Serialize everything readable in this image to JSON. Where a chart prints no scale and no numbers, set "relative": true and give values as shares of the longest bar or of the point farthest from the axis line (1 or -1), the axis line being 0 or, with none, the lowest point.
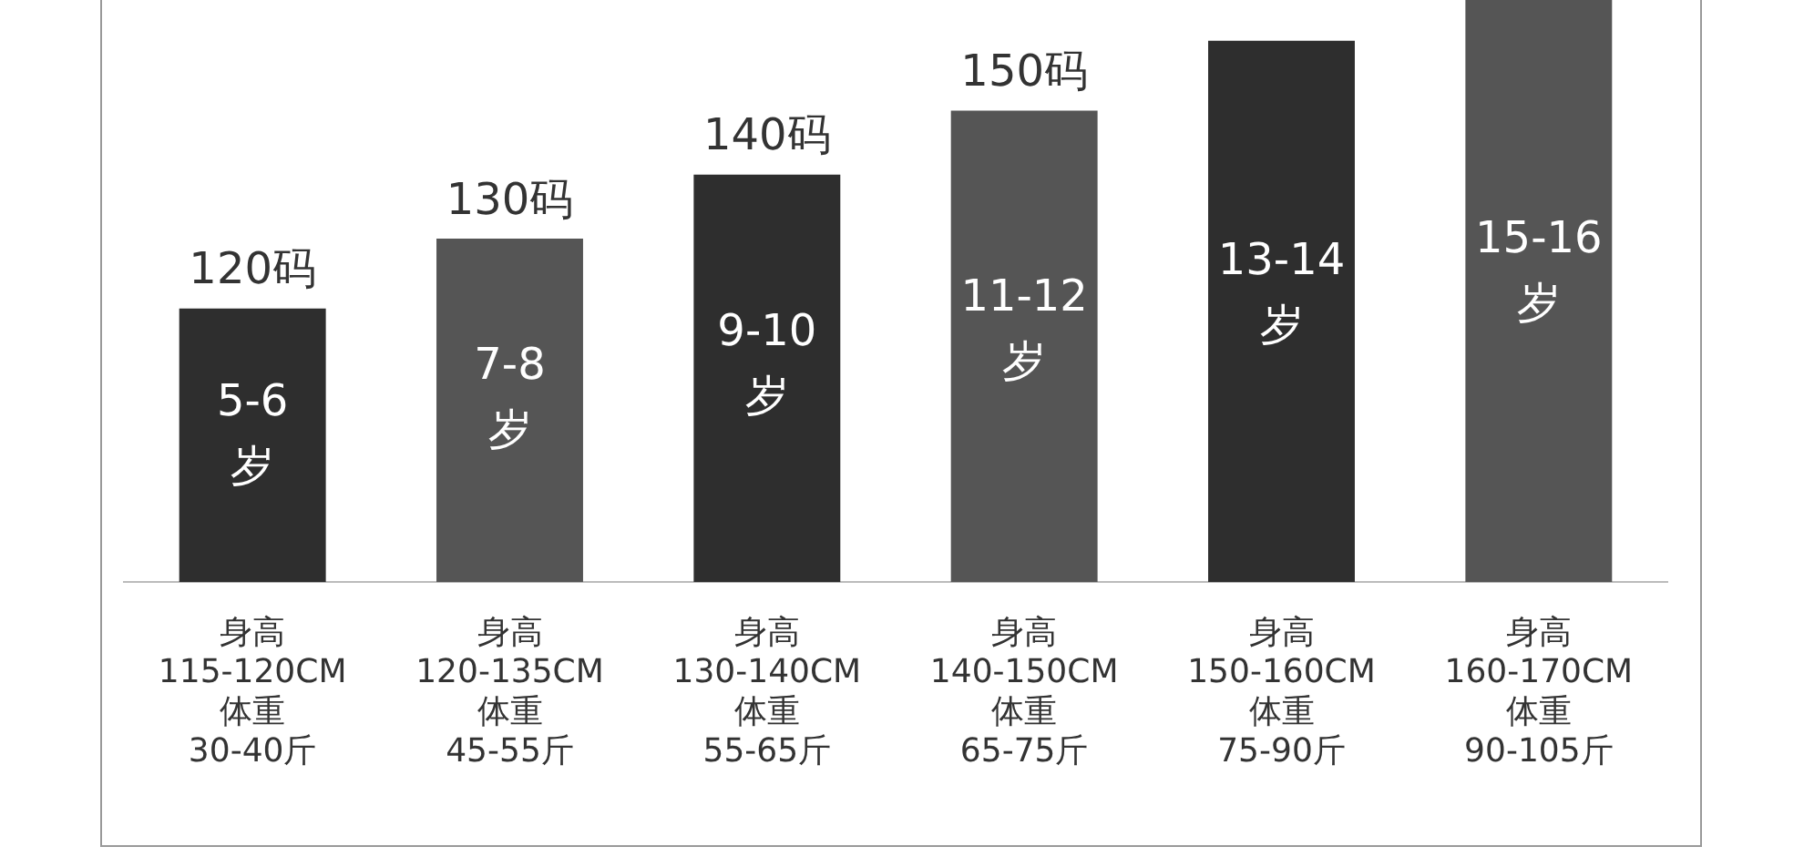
{
  "chart_data": {
    "type": "bar",
    "relative": true,
    "categories": [
      "身高\n115-120CM\n体重\n30-40斤",
      "身高\n120-135CM\n体重\n45-55斤",
      "身高\n130-140CM\n体重\n55-65斤",
      "身高\n140-150CM\n体重\n65-75斤",
      "身高\n150-160CM\n体重\n75-90斤",
      "身高\n160-170CM\n体重\n90-105斤"
    ],
    "values": [
      0.47,
      0.59,
      0.7,
      0.81,
      0.93,
      1
    ],
    "colors": [
      "#2e2e2e",
      "#555555",
      "#2e2e2e",
      "#555555",
      "#2e2e2e",
      "#555555"
    ],
    "annotations": [
      "120码",
      "130码",
      "140码",
      "150码",
      "5-6\n岁",
      "7-8\n岁",
      "9-10\n岁",
      "11-12\n岁",
      "13-14\n岁",
      "15-16\n岁"
    ]
  }
}
